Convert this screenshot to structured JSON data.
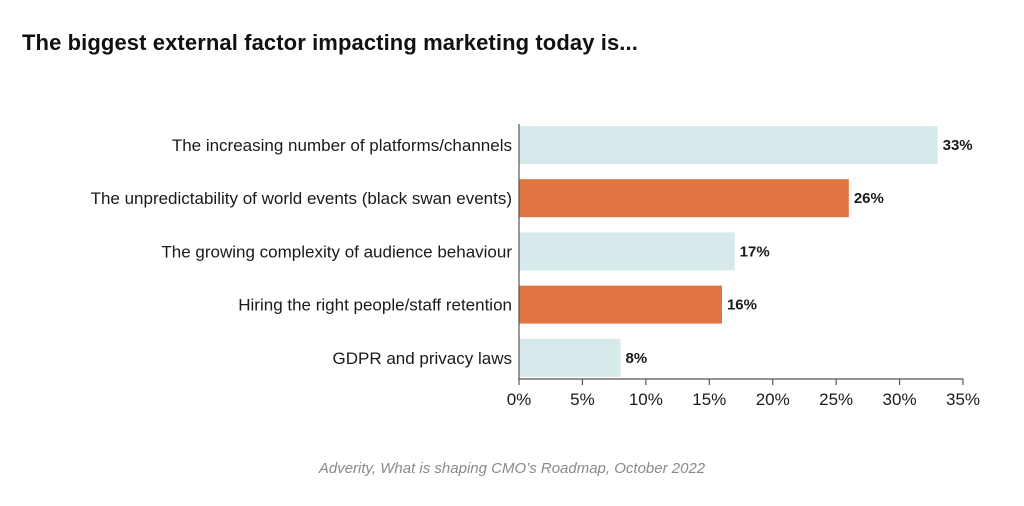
{
  "chart_data": {
    "type": "bar",
    "orientation": "horizontal",
    "title": "The biggest external factor impacting marketing today is...",
    "categories": [
      "The increasing number of platforms/channels",
      "The unpredictability of world events (black swan events)",
      "The growing complexity of audience behaviour",
      "Hiring the right people/staff retention",
      "GDPR and privacy laws"
    ],
    "values": [
      33,
      26,
      17,
      16,
      8
    ],
    "value_labels": [
      "33%",
      "26%",
      "17%",
      "16%",
      "8%"
    ],
    "bar_colors": [
      "#d6e9eb",
      "#e07442",
      "#d6e9eb",
      "#e07442",
      "#d6e9eb"
    ],
    "xlim": [
      0,
      35
    ],
    "xticks": [
      0,
      5,
      10,
      15,
      20,
      25,
      30,
      35
    ],
    "xtick_labels": [
      "0%",
      "5%",
      "10%",
      "15%",
      "20%",
      "25%",
      "30%",
      "35%"
    ],
    "xlabel": "",
    "ylabel": "",
    "grid": false,
    "legend": "none",
    "source": "Adverity, What is shaping CMO’s Roadmap, October 2022"
  }
}
